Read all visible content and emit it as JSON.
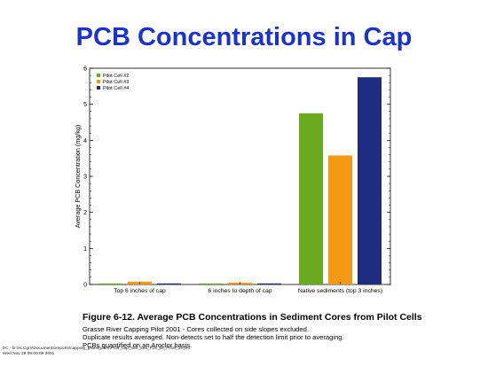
{
  "slide": {
    "title": "PCB Concentrations in Cap"
  },
  "chart_data": {
    "type": "bar",
    "title": "",
    "xlabel": "",
    "ylabel": "Average PCB Concentration  (mg/kg)",
    "ylim": [
      0,
      6
    ],
    "yticks": [
      "0",
      "1",
      "2",
      "3",
      "4",
      "5",
      "6"
    ],
    "categories": [
      "Top 6 inches of cap",
      "6 inches to depth of cap",
      "Native sediments (top 3 inches)"
    ],
    "series": [
      {
        "name": "Pilot Cell #2",
        "color": "#6aaa1e",
        "values": [
          0.02,
          0.02,
          4.75
        ]
      },
      {
        "name": "Pilot Cell #3",
        "color": "#f39a12",
        "values": [
          0.08,
          0.05,
          3.58
        ]
      },
      {
        "name": "Pilot Cell #4",
        "color": "#1e2d80",
        "values": [
          0.02,
          0.02,
          5.75
        ]
      }
    ],
    "grid": false,
    "legend": "top-left"
  },
  "caption": {
    "figure_title": "Figure 6-12.  Average  PCB Concentrations in Sediment Cores from Pilot Cells",
    "lines": [
      "Grasse River Capping Pilot 2001 - Cores collected on side slopes excluded.",
      "Duplicate results averaged.  Non-detects set to half the detection limit prior to averaging.",
      "PCBs quantified on an Aroclor basis."
    ]
  },
  "footer": {
    "path": "EC - D:\\ALCgrs\\Documents\\reports\\capping_pilot\\figures\\PCB_cap_surf_sed_F19_ps_FIG6_12.pro",
    "date": "Wed Nov 28 09:00:09 2001"
  }
}
